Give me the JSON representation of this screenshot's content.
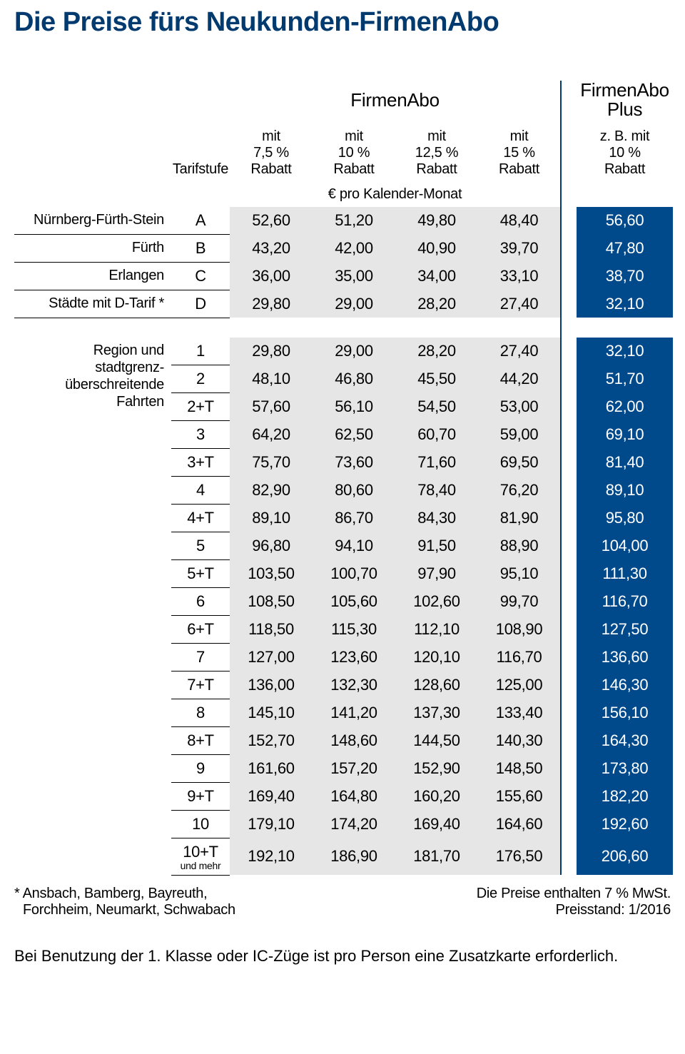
{
  "title": "Die Preise fürs Neukunden-FirmenAbo",
  "headers": {
    "tarifstufe": "Tarifstufe",
    "group_abo": "FirmenAbo",
    "group_plus_l1": "FirmenAbo",
    "group_plus_l2": "Plus",
    "cols": [
      {
        "l1": "mit",
        "l2": "7,5 %",
        "l3": "Rabatt"
      },
      {
        "l1": "mit",
        "l2": "10 %",
        "l3": "Rabatt"
      },
      {
        "l1": "mit",
        "l2": "12,5 %",
        "l3": "Rabatt"
      },
      {
        "l1": "mit",
        "l2": "15 %",
        "l3": "Rabatt"
      }
    ],
    "col_plus": {
      "l1": "z. B. mit",
      "l2": "10 %",
      "l3": "Rabatt"
    },
    "subnote": "€ pro Kalender-Monat"
  },
  "section1": {
    "rows": [
      {
        "label": "Nürnberg-Fürth-Stein",
        "tarif": "A",
        "v": [
          "52,60",
          "51,20",
          "49,80",
          "48,40"
        ],
        "plus": "56,60"
      },
      {
        "label": "Fürth",
        "tarif": "B",
        "v": [
          "43,20",
          "42,00",
          "40,90",
          "39,70"
        ],
        "plus": "47,80"
      },
      {
        "label": "Erlangen",
        "tarif": "C",
        "v": [
          "36,00",
          "35,00",
          "34,00",
          "33,10"
        ],
        "plus": "38,70"
      },
      {
        "label": "Städte mit D-Tarif *",
        "tarif": "D",
        "v": [
          "29,80",
          "29,00",
          "28,20",
          "27,40"
        ],
        "plus": "32,10"
      }
    ]
  },
  "section2": {
    "label_l1": "Region und",
    "label_l2": "stadtgrenz-",
    "label_l3": "überschreitende",
    "label_l4": "Fahrten",
    "rows": [
      {
        "tarif": "1",
        "v": [
          "29,80",
          "29,00",
          "28,20",
          "27,40"
        ],
        "plus": "32,10"
      },
      {
        "tarif": "2",
        "v": [
          "48,10",
          "46,80",
          "45,50",
          "44,20"
        ],
        "plus": "51,70"
      },
      {
        "tarif": "2+T",
        "v": [
          "57,60",
          "56,10",
          "54,50",
          "53,00"
        ],
        "plus": "62,00"
      },
      {
        "tarif": "3",
        "v": [
          "64,20",
          "62,50",
          "60,70",
          "59,00"
        ],
        "plus": "69,10"
      },
      {
        "tarif": "3+T",
        "v": [
          "75,70",
          "73,60",
          "71,60",
          "69,50"
        ],
        "plus": "81,40"
      },
      {
        "tarif": "4",
        "v": [
          "82,90",
          "80,60",
          "78,40",
          "76,20"
        ],
        "plus": "89,10"
      },
      {
        "tarif": "4+T",
        "v": [
          "89,10",
          "86,70",
          "84,30",
          "81,90"
        ],
        "plus": "95,80"
      },
      {
        "tarif": "5",
        "v": [
          "96,80",
          "94,10",
          "91,50",
          "88,90"
        ],
        "plus": "104,00"
      },
      {
        "tarif": "5+T",
        "v": [
          "103,50",
          "100,70",
          "97,90",
          "95,10"
        ],
        "plus": "111,30"
      },
      {
        "tarif": "6",
        "v": [
          "108,50",
          "105,60",
          "102,60",
          "99,70"
        ],
        "plus": "116,70"
      },
      {
        "tarif": "6+T",
        "v": [
          "118,50",
          "115,30",
          "112,10",
          "108,90"
        ],
        "plus": "127,50"
      },
      {
        "tarif": "7",
        "v": [
          "127,00",
          "123,60",
          "120,10",
          "116,70"
        ],
        "plus": "136,60"
      },
      {
        "tarif": "7+T",
        "v": [
          "136,00",
          "132,30",
          "128,60",
          "125,00"
        ],
        "plus": "146,30"
      },
      {
        "tarif": "8",
        "v": [
          "145,10",
          "141,20",
          "137,30",
          "133,40"
        ],
        "plus": "156,10"
      },
      {
        "tarif": "8+T",
        "v": [
          "152,70",
          "148,60",
          "144,50",
          "140,30"
        ],
        "plus": "164,30"
      },
      {
        "tarif": "9",
        "v": [
          "161,60",
          "157,20",
          "152,90",
          "148,50"
        ],
        "plus": "173,80"
      },
      {
        "tarif": "9+T",
        "v": [
          "169,40",
          "164,80",
          "160,20",
          "155,60"
        ],
        "plus": "182,20"
      },
      {
        "tarif": "10",
        "v": [
          "179,10",
          "174,20",
          "169,40",
          "164,60"
        ],
        "plus": "192,60"
      },
      {
        "tarif": "10+T",
        "sub": "und mehr",
        "v": [
          "192,10",
          "186,90",
          "181,70",
          "176,50"
        ],
        "plus": "206,60"
      }
    ]
  },
  "footnote_left_l1": "* Ansbach, Bamberg, Bayreuth,",
  "footnote_left_l2": "Forchheim, Neumarkt, Schwabach",
  "footnote_right_l1": "Die Preise enthalten 7 % MwSt.",
  "footnote_right_l2": "Preisstand: 1/2016",
  "bottom_note": "Bei Benutzung der 1. Klasse oder IC-Züge ist pro Person eine Zusatzkarte erforderlich.",
  "colors": {
    "title": "#003a6f",
    "abo_bg": "#e6e6e6",
    "plus_bg": "#004a8b",
    "plus_fg": "#ffffff",
    "sep": "#003a6f"
  }
}
